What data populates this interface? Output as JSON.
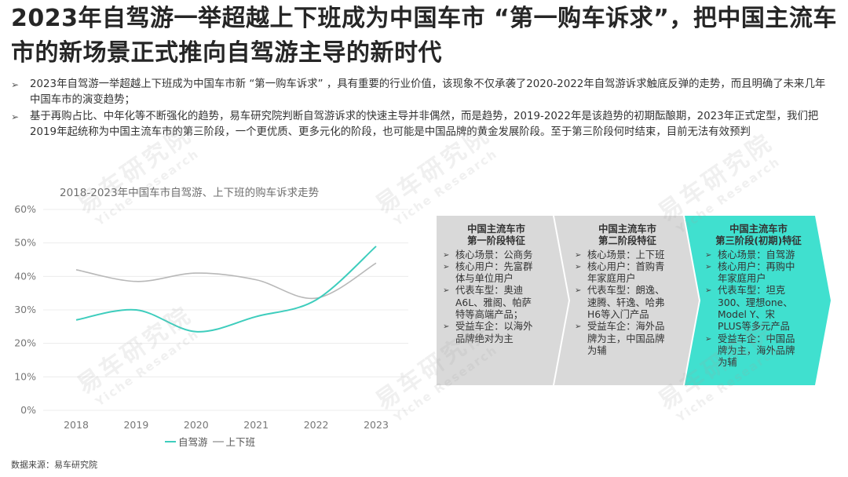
{
  "slide": {
    "title": "2023年自驾游一举超越上下班成为中国车市 “第一购车诉求”，把中国主流车市的新场景正式推向自驾游主导的新时代",
    "bullets": [
      "2023年自驾游一举超越上下班成为中国车市新 “第一购车诉求” ，具有重要的行业价值，该现象不仅承袭了2020-2022年自驾游诉求触底反弹的走势，而且明确了未来几年中国车市的演变趋势；",
      "基于再购占比、中年化等不断强化的趋势，易车研究院判断自驾游诉求的快速主导并非偶然，而是趋势，2019-2022年是该趋势的初期酝酿期，2023年正式定型，我们把2019年起统称为中国主流车市的第三阶段，一个更优质、更多元化的阶段，也可能是中国品牌的黄金发展阶段。至于第三阶段何时结束，目前无法有效预判"
    ],
    "bullet_marker": "➢",
    "source": "数据来源：易车研究院",
    "watermark_cn": "易车研究院",
    "watermark_en": "Yiche Research"
  },
  "chart_data": {
    "type": "line",
    "title": "2018-2023年中国车市自驾游、上下班的购车诉求走势",
    "x": [
      "2018",
      "2019",
      "2020",
      "2021",
      "2022",
      "2023"
    ],
    "y_ticks": [
      "0%",
      "10%",
      "20%",
      "30%",
      "40%",
      "50%",
      "60%"
    ],
    "ylim": [
      0,
      60
    ],
    "grid": true,
    "legend_position": "bottom",
    "series": [
      {
        "name": "自驾游",
        "color": "#3ecdbd",
        "values": [
          27,
          30,
          23.5,
          28,
          33,
          49
        ]
      },
      {
        "name": "上下班",
        "color": "#b8b8b8",
        "values": [
          42,
          38.5,
          41,
          39,
          33.5,
          44
        ]
      }
    ]
  },
  "stages": [
    {
      "title_lines": [
        "中国主流车市",
        "第一阶段特征"
      ],
      "items": [
        [
          "核心场景：公商务"
        ],
        [
          "核心用户：先富群",
          "体与单位用户"
        ],
        [
          "代表车型：奥迪",
          "A6L、雅阁、帕萨",
          "特等高端产品；"
        ],
        [
          "受益车企：以海外",
          "品牌绝对为主"
        ]
      ],
      "fill": "#d9d9d9"
    },
    {
      "title_lines": [
        "中国主流车市",
        "第二阶段特征"
      ],
      "items": [
        [
          "核心场景：上下班"
        ],
        [
          "核心用户：首购青",
          "年家庭用户"
        ],
        [
          "代表车型：朗逸、",
          "速腾、轩逸、哈弗",
          "H6等入门产品"
        ],
        [
          "受益车企：海外品",
          "牌为主，中国品牌",
          "为辅"
        ]
      ],
      "fill": "#d9d9d9"
    },
    {
      "title_lines": [
        "中国主流车市",
        "第三阶段(初期)特征"
      ],
      "items": [
        [
          "核心场景：自驾游"
        ],
        [
          "核心用户：再购中",
          "年家庭用户"
        ],
        [
          "代表车型：坦克",
          "300、理想one、",
          "Model Y、宋",
          "PLUS等多元产品"
        ],
        [
          "受益车企：中国品",
          "牌为主，海外品牌",
          "为辅"
        ]
      ],
      "fill": "#40e0cf"
    }
  ],
  "stage_marker": "➢"
}
